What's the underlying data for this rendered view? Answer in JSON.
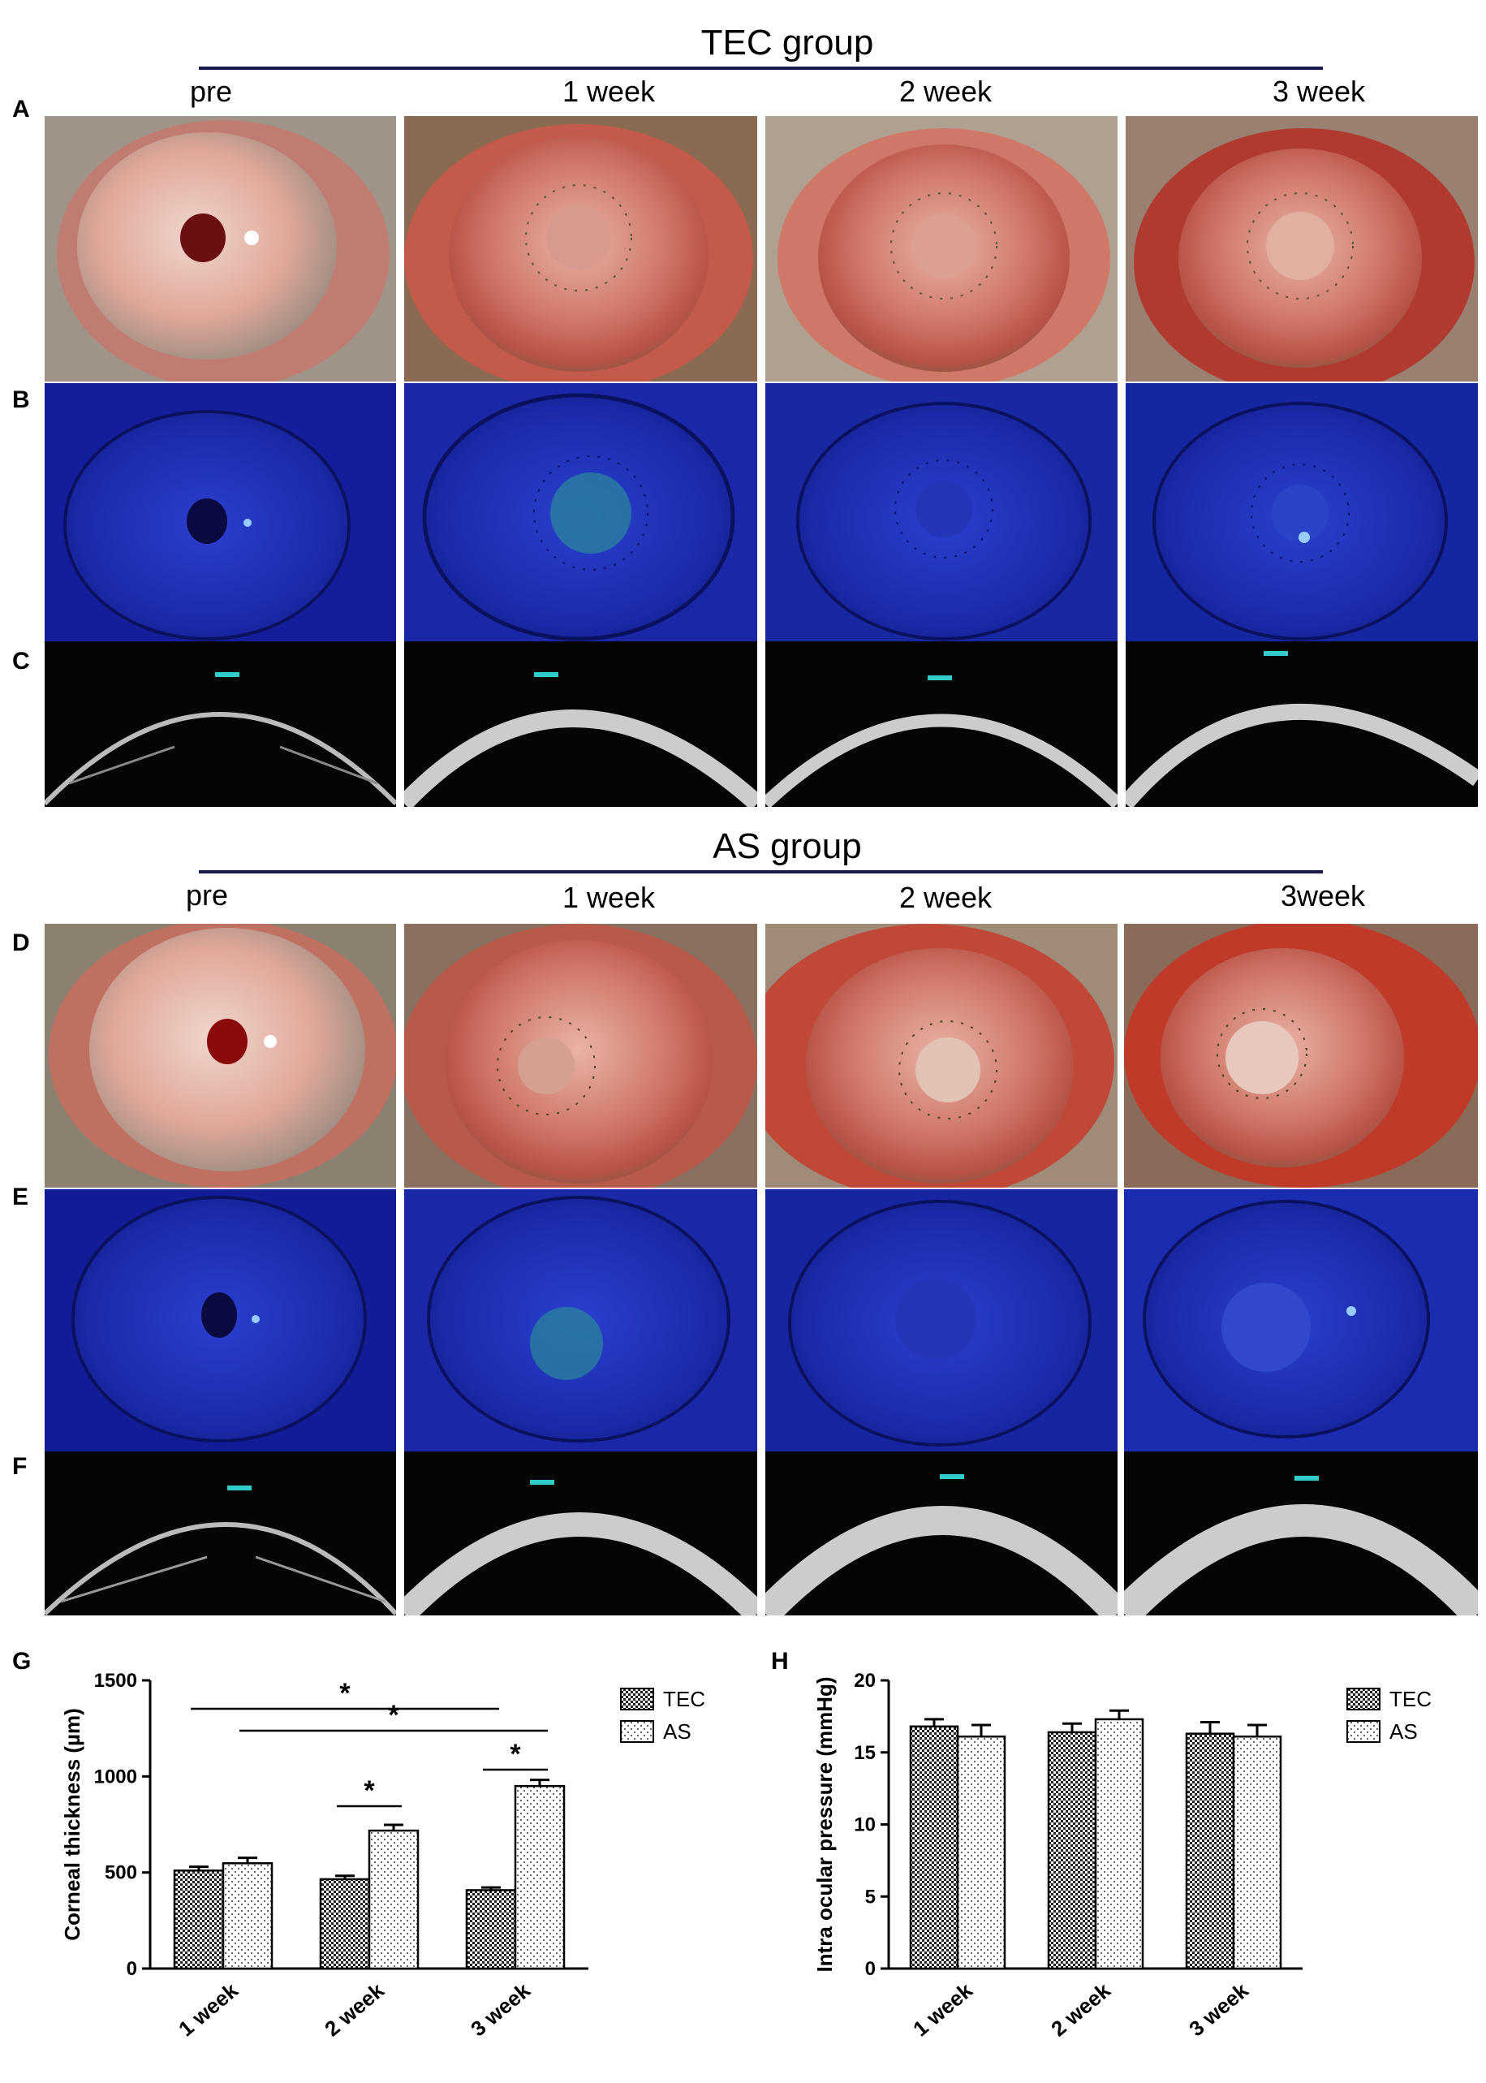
{
  "tec": {
    "title": "TEC group",
    "columns": [
      "pre",
      "1 week",
      "2 week",
      "3 week"
    ],
    "rows": [
      "A",
      "B",
      "C"
    ]
  },
  "as": {
    "title": "AS group",
    "columns": [
      "pre",
      "1 week",
      "2 week",
      "3week"
    ],
    "rows": [
      "D",
      "E",
      "F"
    ]
  },
  "colors": {
    "rule": "#1a1a4a",
    "slitlamp_red": "#c8655b",
    "fluorescein_blue": "#1a2fae",
    "oct_bg": "#050505"
  },
  "chart_data": [
    {
      "panel": "G",
      "type": "bar",
      "categories": [
        "1 week",
        "2 week",
        "3 week"
      ],
      "series": [
        {
          "name": "TEC",
          "values": [
            510,
            465,
            408
          ],
          "errors": [
            20,
            18,
            14
          ]
        },
        {
          "name": "AS",
          "values": [
            548,
            718,
            950
          ],
          "errors": [
            28,
            30,
            32
          ]
        }
      ],
      "ylabel": "Corneal thickness (µm)",
      "ylim": [
        0,
        1500
      ],
      "yticks": [
        0,
        500,
        1000,
        1500
      ],
      "legend": "top-right",
      "significance": [
        {
          "from": [
            0,
            "TEC"
          ],
          "to": [
            2,
            "TEC"
          ],
          "label": "*"
        },
        {
          "from": [
            0,
            "AS"
          ],
          "to": [
            2,
            "AS"
          ],
          "label": "*"
        },
        {
          "from": [
            1,
            "TEC"
          ],
          "to": [
            1,
            "AS"
          ],
          "label": "*"
        },
        {
          "from": [
            2,
            "TEC"
          ],
          "to": [
            2,
            "AS"
          ],
          "label": "*"
        }
      ]
    },
    {
      "panel": "H",
      "type": "bar",
      "categories": [
        "1 week",
        "2 week",
        "3 week"
      ],
      "series": [
        {
          "name": "TEC",
          "values": [
            16.8,
            16.4,
            16.3
          ],
          "errors": [
            0.5,
            0.6,
            0.8
          ]
        },
        {
          "name": "AS",
          "values": [
            16.1,
            17.3,
            16.1
          ],
          "errors": [
            0.8,
            0.6,
            0.8
          ]
        }
      ],
      "ylabel": "Intra ocular pressure (mmHg)",
      "ylim": [
        0,
        20
      ],
      "yticks": [
        0,
        5,
        10,
        15,
        20
      ],
      "legend": "top-right"
    }
  ]
}
